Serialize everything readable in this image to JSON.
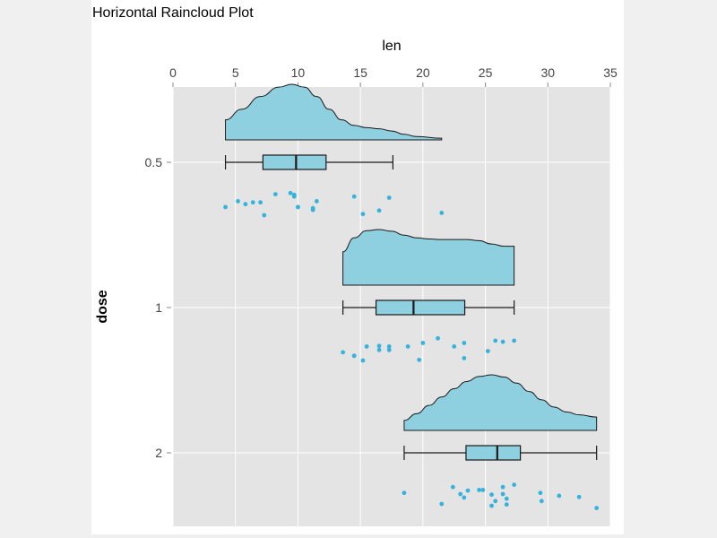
{
  "chart_data": {
    "type": "raincloud",
    "orientation": "horizontal",
    "title": "Horizontal Raincloud Plot",
    "xlabel": "len",
    "ylabel": "dose",
    "x_axis_position": "top",
    "xlim": [
      0,
      35
    ],
    "x_ticks": [
      0,
      5,
      10,
      15,
      20,
      25,
      30,
      35
    ],
    "categories": [
      "0.5",
      "1",
      "2"
    ],
    "grid": true,
    "colors": {
      "fill": "#8ecfe0",
      "stroke": "#1a1a1a",
      "points": "#35b3dc",
      "panel_bg": "#e4e4e4",
      "grid": "#ffffff"
    },
    "groups": [
      {
        "category": "0.5",
        "box": {
          "whisker_low": 4.2,
          "q1": 7.2,
          "median": 9.85,
          "q3": 12.25,
          "whisker_high": 17.6
        },
        "density": [
          [
            4.2,
            0.36
          ],
          [
            5.5,
            0.55
          ],
          [
            7.0,
            0.78
          ],
          [
            8.5,
            0.95
          ],
          [
            9.5,
            1.0
          ],
          [
            10.5,
            0.95
          ],
          [
            11.5,
            0.78
          ],
          [
            12.5,
            0.55
          ],
          [
            13.5,
            0.36
          ],
          [
            14.5,
            0.26
          ],
          [
            15.5,
            0.22
          ],
          [
            16.5,
            0.2
          ],
          [
            17.5,
            0.16
          ],
          [
            18.5,
            0.1
          ],
          [
            19.5,
            0.06
          ],
          [
            21.5,
            0.03
          ]
        ],
        "points": [
          {
            "x": 4.2,
            "j": 0.3
          },
          {
            "x": 5.2,
            "j": -0.2
          },
          {
            "x": 5.8,
            "j": 0.05
          },
          {
            "x": 6.4,
            "j": -0.1
          },
          {
            "x": 7.0,
            "j": -0.1
          },
          {
            "x": 7.3,
            "j": 1.0
          },
          {
            "x": 8.2,
            "j": -0.8
          },
          {
            "x": 9.4,
            "j": -0.9
          },
          {
            "x": 9.7,
            "j": -0.75
          },
          {
            "x": 9.7,
            "j": -0.6
          },
          {
            "x": 10.0,
            "j": 0.3
          },
          {
            "x": 10.0,
            "j": 0.3
          },
          {
            "x": 11.2,
            "j": 0.4
          },
          {
            "x": 11.2,
            "j": 0.55
          },
          {
            "x": 11.5,
            "j": -0.2
          },
          {
            "x": 14.5,
            "j": -0.6
          },
          {
            "x": 15.2,
            "j": 0.9
          },
          {
            "x": 16.5,
            "j": 0.6
          },
          {
            "x": 17.3,
            "j": -0.5
          },
          {
            "x": 21.5,
            "j": 0.8
          }
        ]
      },
      {
        "category": "1",
        "box": {
          "whisker_low": 13.6,
          "q1": 16.25,
          "median": 19.25,
          "q3": 23.35,
          "whisker_high": 27.3
        },
        "density": [
          [
            13.6,
            0.6
          ],
          [
            14.5,
            0.85
          ],
          [
            15.5,
            0.98
          ],
          [
            16.5,
            1.0
          ],
          [
            17.5,
            0.97
          ],
          [
            18.5,
            0.9
          ],
          [
            19.5,
            0.85
          ],
          [
            20.5,
            0.83
          ],
          [
            21.5,
            0.82
          ],
          [
            22.5,
            0.82
          ],
          [
            23.5,
            0.82
          ],
          [
            24.5,
            0.8
          ],
          [
            25.5,
            0.74
          ],
          [
            26.5,
            0.7
          ],
          [
            27.3,
            0.7
          ]
        ],
        "points": [
          {
            "x": 13.6,
            "j": 0.3
          },
          {
            "x": 14.5,
            "j": 0.6
          },
          {
            "x": 14.5,
            "j": 0.6
          },
          {
            "x": 15.2,
            "j": 1.0
          },
          {
            "x": 15.5,
            "j": -0.2
          },
          {
            "x": 16.5,
            "j": -0.25
          },
          {
            "x": 16.5,
            "j": 0.1
          },
          {
            "x": 17.3,
            "j": 0.1
          },
          {
            "x": 17.3,
            "j": -0.2
          },
          {
            "x": 18.8,
            "j": -0.2
          },
          {
            "x": 19.7,
            "j": 0.95
          },
          {
            "x": 20.0,
            "j": -0.5
          },
          {
            "x": 21.2,
            "j": -0.9
          },
          {
            "x": 22.5,
            "j": -0.2
          },
          {
            "x": 23.3,
            "j": -0.5
          },
          {
            "x": 23.3,
            "j": 0.8
          },
          {
            "x": 25.2,
            "j": 0.2
          },
          {
            "x": 25.8,
            "j": -0.7
          },
          {
            "x": 26.4,
            "j": -0.6
          },
          {
            "x": 27.3,
            "j": -0.7
          }
        ]
      },
      {
        "category": "2",
        "box": {
          "whisker_low": 18.5,
          "q1": 23.45,
          "median": 25.95,
          "q3": 27.8,
          "whisker_high": 33.9
        },
        "density": [
          [
            18.5,
            0.18
          ],
          [
            19.5,
            0.3
          ],
          [
            20.5,
            0.45
          ],
          [
            21.5,
            0.6
          ],
          [
            22.5,
            0.75
          ],
          [
            23.5,
            0.88
          ],
          [
            24.5,
            0.97
          ],
          [
            25.5,
            1.0
          ],
          [
            26.5,
            0.96
          ],
          [
            27.5,
            0.85
          ],
          [
            28.5,
            0.7
          ],
          [
            29.5,
            0.55
          ],
          [
            30.5,
            0.42
          ],
          [
            31.5,
            0.33
          ],
          [
            32.5,
            0.28
          ],
          [
            33.9,
            0.24
          ]
        ],
        "points": [
          {
            "x": 18.5,
            "j": -0.1
          },
          {
            "x": 21.5,
            "j": 0.85
          },
          {
            "x": 22.4,
            "j": -0.6
          },
          {
            "x": 23.0,
            "j": 0.0
          },
          {
            "x": 23.3,
            "j": 0.3
          },
          {
            "x": 23.6,
            "j": -0.3
          },
          {
            "x": 24.5,
            "j": -0.35
          },
          {
            "x": 24.8,
            "j": -0.35
          },
          {
            "x": 25.5,
            "j": 1.0
          },
          {
            "x": 25.5,
            "j": 0.05
          },
          {
            "x": 25.8,
            "j": 0.6
          },
          {
            "x": 26.4,
            "j": -0.6
          },
          {
            "x": 26.4,
            "j": 0.0
          },
          {
            "x": 26.7,
            "j": 0.4
          },
          {
            "x": 26.7,
            "j": 0.9
          },
          {
            "x": 27.3,
            "j": -0.8
          },
          {
            "x": 29.4,
            "j": -0.1
          },
          {
            "x": 29.5,
            "j": 0.6
          },
          {
            "x": 30.9,
            "j": 0.15
          },
          {
            "x": 32.5,
            "j": 0.25
          },
          {
            "x": 33.9,
            "j": 1.2
          }
        ]
      }
    ]
  }
}
